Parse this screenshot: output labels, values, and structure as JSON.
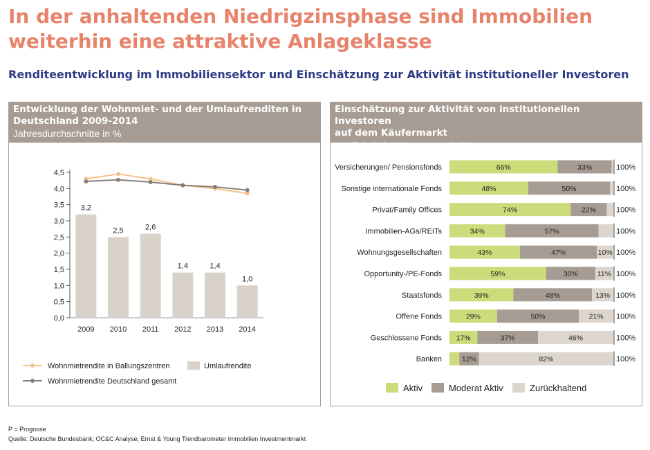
{
  "title_line1": "In der anhaltenden Niedrigzinsphase sind Immobilien",
  "title_line2": "weiterhin eine attraktive Anlageklasse",
  "subtitle": "Renditeentwicklung im Immobiliensektor und Einschätzung zur Aktivität institutioneller Investoren",
  "left_panel": {
    "title_line1": "Entwicklung der Wohnmiet- und der Umlaufrenditen in",
    "title_line2": "Deutschland 2009-2014",
    "subtitle": "Jahresdurchschnitte in %"
  },
  "right_panel": {
    "title_line1": "Einschätzung zur Aktivität von institutionellen Investoren",
    "title_line2": "auf dem Käufermarkt",
    "subtitle": "Häufigkeit der Nennungen in %"
  },
  "footnote": "P = Prognose",
  "source": "Quelle: Deutsche Bundesbank; OC&C Analyse; Ernst & Young Trendbarometer Immobilien Investmentmarkt",
  "chart_data": [
    {
      "type": "bar+line",
      "categories": [
        "2009",
        "2010",
        "2011",
        "2012",
        "2013",
        "2014"
      ],
      "ylim": [
        0,
        4.5
      ],
      "yticks": [
        "0,0",
        "0,5",
        "1,0",
        "1,5",
        "2,0",
        "2,5",
        "3,0",
        "3,5",
        "4,0",
        "4,5"
      ],
      "bars": {
        "name": "Umlaufrendite",
        "values": [
          3.2,
          2.5,
          2.6,
          1.4,
          1.4,
          1.0
        ],
        "labels": [
          "3,2",
          "2,5",
          "2,6",
          "1,4",
          "1,4",
          "1,0"
        ],
        "color": "#d9d2cb"
      },
      "series": [
        {
          "name": "Wohnmietrendite in Ballungszentren",
          "values": [
            4.3,
            4.45,
            4.3,
            4.1,
            4.0,
            3.85
          ],
          "color": "#f5c28c"
        },
        {
          "name": "Wohnmietrendite Deutschland gesamt",
          "values": [
            4.22,
            4.27,
            4.2,
            4.1,
            4.05,
            3.95
          ],
          "color": "#8a7f78"
        }
      ],
      "legend_position": "bottom"
    },
    {
      "type": "stacked-bar-horizontal",
      "categories": [
        "Versicherungen/ Pensionsfonds",
        "Sonstige internationale Fonds",
        "Privat/Family Offices",
        "Immobilien-AGs/REITs",
        "Wohnungsgesellschaften",
        "Opportunity-/PE-Fonds",
        "Staatsfonds",
        "Offene Fonds",
        "Geschlossene Fonds",
        "Banken"
      ],
      "series": [
        {
          "name": "Aktiv",
          "color": "#cddc7a",
          "values": [
            66,
            48,
            74,
            34,
            43,
            59,
            39,
            29,
            17,
            6
          ],
          "labels": [
            "66%",
            "48%",
            "74%",
            "34%",
            "43%",
            "59%",
            "39%",
            "29%",
            "17%",
            ""
          ]
        },
        {
          "name": "Moderat Aktiv",
          "color": "#a79c93",
          "values": [
            33,
            50,
            22,
            57,
            47,
            30,
            48,
            50,
            37,
            12
          ],
          "labels": [
            "33%",
            "50%",
            "22%",
            "57%",
            "47%",
            "30%",
            "48%",
            "50%",
            "37%",
            "12%"
          ]
        },
        {
          "name": "Zurückhaltend",
          "color": "#ddd6cf",
          "values": [
            1,
            2,
            4,
            9,
            10,
            11,
            13,
            21,
            46,
            82
          ],
          "labels": [
            "",
            "",
            "",
            "",
            "10%",
            "11%",
            "13%",
            "21%",
            "46%",
            "82%"
          ]
        }
      ],
      "totals": [
        "100%",
        "100%",
        "100%",
        "100%",
        "100%",
        "100%",
        "100%",
        "100%",
        "100%",
        "100%"
      ],
      "legend_position": "bottom"
    }
  ]
}
